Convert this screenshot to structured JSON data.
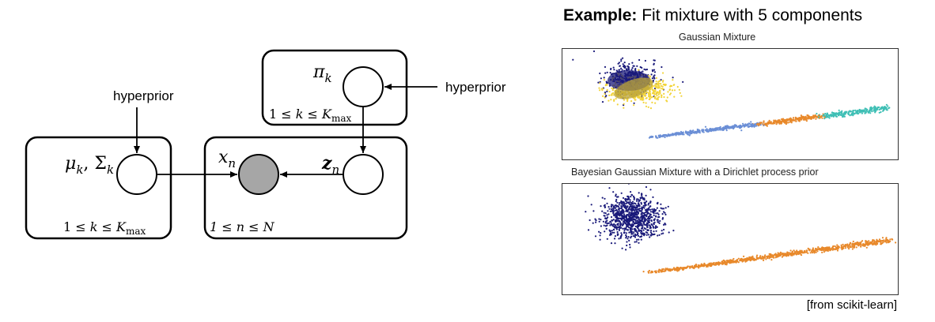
{
  "diagram": {
    "plate_mu": {
      "node_label": "μ",
      "node_sub": "k",
      "sep": ", ",
      "node_label2": "Σ",
      "node_sub2": "k",
      "range_left": "1 ≤ ",
      "range_k": "k",
      "range_mid": " ≤ ",
      "range_K": "K",
      "range_sub": "max"
    },
    "plate_pi": {
      "node_label": "π",
      "node_sub": "k",
      "range_left": "1 ≤ ",
      "range_k": "k",
      "range_mid": " ≤ ",
      "range_K": "K",
      "range_sub": "max"
    },
    "plate_n": {
      "x_label": "x",
      "x_sub": "n",
      "z_label": "z",
      "z_sub": "n",
      "range": "1 ≤ n ≤ N"
    },
    "hyperprior_left": "hyperprior",
    "hyperprior_right": "hyperprior",
    "observed_color": "#a6a6a6"
  },
  "example": {
    "title_bold": "Example:",
    "title_rest": " Fit mixture with 5 components",
    "panel1_title": "Gaussian Mixture",
    "panel2_title": "Bayesian Gaussian Mixture with a Dirichlet process prior",
    "credit": "[from scikit-learn]",
    "colors": {
      "navy": "#1a1a7a",
      "gold": "#f2d43a",
      "blue": "#6b8fd6",
      "orange": "#e8892b",
      "teal": "#3fbfb5"
    }
  }
}
